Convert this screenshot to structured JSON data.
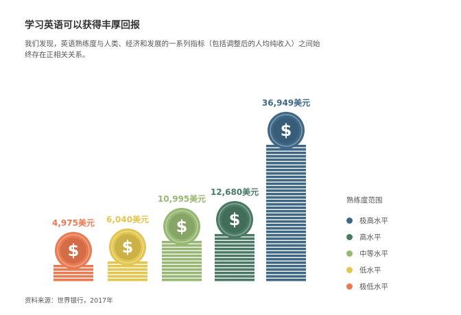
{
  "header": {
    "title": "学习英语可以获得丰厚回报",
    "subtitle": "我们发现，英语熟练度与人类、经济和发展的一系列指标（包括调整后的人均纯收入）之间始终存在正相关关系。"
  },
  "chart_data": {
    "type": "bar",
    "title": "学习英语可以获得丰厚回报",
    "categories": [
      "极低水平",
      "低水平",
      "中等水平",
      "高水平",
      "极高水平"
    ],
    "values": [
      4975,
      6040,
      10995,
      12680,
      36949
    ],
    "value_labels": [
      "4,975美元",
      "6,040美元",
      "10,995美元",
      "12,680美元",
      "36,949美元"
    ],
    "colors": [
      "#ea7a51",
      "#e2c64f",
      "#96b872",
      "#4a7a64",
      "#3f6887"
    ],
    "icon": "dollar-coin-icon",
    "legend": {
      "title": "熟练度范围",
      "placement": "right",
      "items": [
        {
          "label": "极高水平",
          "color": "#3f6887"
        },
        {
          "label": "高水平",
          "color": "#4a7a64"
        },
        {
          "label": "中等水平",
          "color": "#96b872"
        },
        {
          "label": "低水平",
          "color": "#e2c64f"
        },
        {
          "label": "极低水平",
          "color": "#ea7a51"
        }
      ]
    }
  },
  "footer": {
    "source": "资料来源：世界银行，2017年"
  }
}
